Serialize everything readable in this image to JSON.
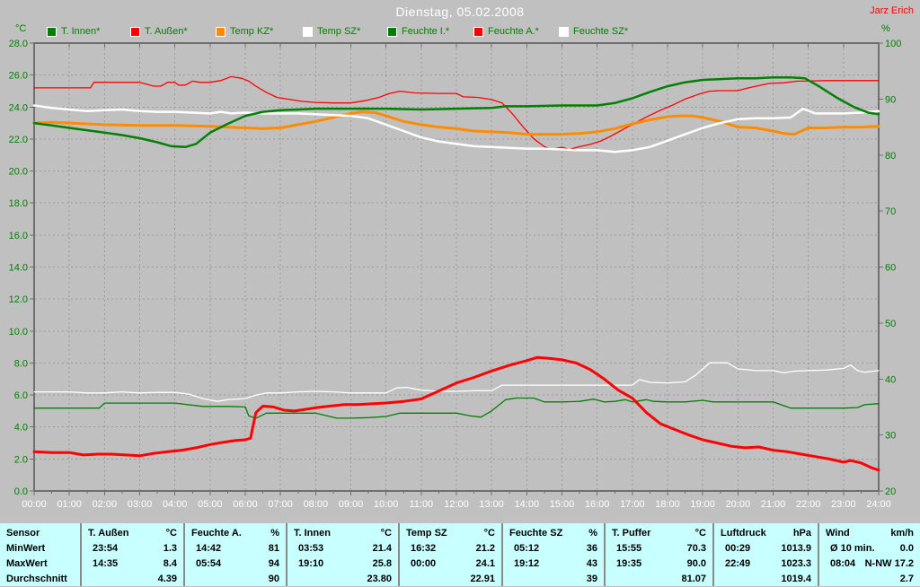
{
  "header": {
    "title": "Dienstag, 05.02.2008",
    "author": "Jarz Erich"
  },
  "axes": {
    "left_unit": "°C",
    "right_unit": "%"
  },
  "legend": [
    {
      "key": "t-innen",
      "label": "T. Innen*",
      "color": "#008000"
    },
    {
      "key": "t-aussen",
      "label": "T. Außen*",
      "color": "#ff0000"
    },
    {
      "key": "temp-kz",
      "label": "Temp KZ*",
      "color": "#ff8c00"
    },
    {
      "key": "temp-sz",
      "label": "Temp SZ*",
      "color": "#ffffff"
    },
    {
      "key": "feuchte-i",
      "label": "Feuchte I.*",
      "color": "#008000"
    },
    {
      "key": "feuchte-a",
      "label": "Feuchte A.*",
      "color": "#ff0000"
    },
    {
      "key": "feuchte-sz",
      "label": "Feuchte SZ*",
      "color": "#ffffff"
    }
  ],
  "chart_data": {
    "type": "line",
    "title": "Dienstag, 05.02.2008",
    "grid": "dashed",
    "x_axis": {
      "range": [
        0,
        24
      ],
      "ticks": [
        "00:00",
        "01:00",
        "02:00",
        "03:00",
        "04:00",
        "05:00",
        "06:00",
        "07:00",
        "08:00",
        "09:00",
        "10:00",
        "11:00",
        "12:00",
        "13:00",
        "14:00",
        "15:00",
        "16:00",
        "17:00",
        "18:00",
        "19:00",
        "20:00",
        "21:00",
        "22:00",
        "23:00",
        "24:00"
      ]
    },
    "left_axis": {
      "unit": "°C",
      "range": [
        0,
        28
      ],
      "ticks": [
        "28.0",
        "26.0",
        "24.0",
        "22.0",
        "20.0",
        "18.0",
        "16.0",
        "14.0",
        "12.0",
        "10.0",
        "8.0",
        "6.0",
        "4.0",
        "2.0",
        "0.0"
      ]
    },
    "right_axis": {
      "unit": "%",
      "range": [
        20,
        100
      ],
      "ticks": [
        "100",
        "90",
        "80",
        "70",
        "60",
        "50",
        "40",
        "30",
        "20"
      ]
    },
    "series": [
      {
        "key": "feuchte-a",
        "name": "Feuchte A.",
        "axis": "right",
        "color": "#ff0000",
        "width": 1.3,
        "x": [
          0,
          1,
          1.6,
          1.7,
          2.5,
          3,
          3.4,
          3.6,
          3.8,
          4.0,
          4.1,
          4.3,
          4.5,
          4.7,
          5.0,
          5.3,
          5.6,
          5.9,
          6.1,
          6.3,
          6.6,
          6.9,
          7.2,
          7.6,
          8.0,
          8.5,
          9.0,
          9.4,
          9.8,
          10.1,
          10.4,
          10.8,
          11.5,
          12.0,
          12.2,
          12.6,
          13.0,
          13.3,
          13.6,
          13.9,
          14.2,
          14.5,
          14.7,
          15.0,
          15.2,
          15.5,
          15.8,
          16.1,
          16.4,
          16.8,
          17.1,
          17.4,
          17.8,
          18.1,
          18.5,
          18.9,
          19.2,
          19.5,
          20.0,
          20.3,
          20.6,
          20.9,
          21.3,
          21.7,
          21.9,
          22.5,
          23.0,
          24.0
        ],
        "values": [
          92,
          92,
          92,
          93,
          93,
          93,
          92.3,
          92.3,
          93,
          93,
          92.5,
          92.5,
          93.2,
          93,
          93,
          93.3,
          94,
          93.7,
          93.2,
          92.3,
          91.2,
          90.3,
          90,
          89.6,
          89.4,
          89.3,
          89.3,
          89.7,
          90.3,
          91,
          91.4,
          91.1,
          91,
          91,
          90.4,
          90.3,
          89.9,
          89.3,
          87.3,
          85,
          82.9,
          81.5,
          81,
          81.4,
          81,
          81.5,
          81.9,
          82.5,
          83.4,
          84.8,
          85.8,
          86.8,
          88,
          88.8,
          90,
          90.9,
          91.4,
          91.5,
          91.5,
          92,
          92.4,
          92.8,
          92.9,
          93.2,
          93.2,
          93.3,
          93.3,
          93.3
        ]
      },
      {
        "key": "temp-kz",
        "name": "Temp KZ",
        "axis": "left",
        "color": "#ff8c00",
        "width": 3,
        "x": [
          0,
          0.5,
          1,
          2,
          3,
          4,
          5,
          5.5,
          6,
          6.5,
          7,
          7.5,
          8,
          8.5,
          9,
          9.3,
          9.7,
          10,
          10.5,
          11,
          11.5,
          12,
          12.5,
          13,
          13.5,
          14,
          14.5,
          15,
          15.5,
          16,
          16.5,
          17,
          17.5,
          18,
          18.3,
          18.7,
          19,
          19.5,
          20,
          20.5,
          21,
          21.3,
          21.6,
          22,
          22.5,
          23,
          23.5,
          24
        ],
        "values": [
          23.0,
          23.05,
          23.0,
          22.9,
          22.85,
          22.85,
          22.8,
          22.75,
          22.7,
          22.65,
          22.7,
          22.9,
          23.1,
          23.35,
          23.6,
          23.7,
          23.65,
          23.45,
          23.1,
          22.9,
          22.75,
          22.65,
          22.5,
          22.45,
          22.4,
          22.3,
          22.3,
          22.3,
          22.35,
          22.45,
          22.65,
          22.95,
          23.2,
          23.4,
          23.45,
          23.45,
          23.35,
          23.1,
          22.75,
          22.7,
          22.5,
          22.35,
          22.3,
          22.7,
          22.7,
          22.75,
          22.75,
          22.8
        ]
      },
      {
        "key": "temp-sz",
        "name": "Temp SZ",
        "axis": "left",
        "color": "#ffffff",
        "width": 2.5,
        "x": [
          0,
          0.5,
          1,
          1.5,
          2,
          2.5,
          3,
          3.5,
          4,
          4.5,
          5,
          5.3,
          5.6,
          6,
          6.5,
          7,
          7.5,
          8,
          8.5,
          9,
          9.5,
          10,
          10.5,
          11,
          11.5,
          12,
          12.5,
          13,
          13.5,
          14,
          14.5,
          15,
          15.5,
          16,
          16.5,
          17,
          17.5,
          18,
          18.5,
          19,
          19.5,
          20,
          20.5,
          21,
          21.5,
          21.85,
          22.2,
          22.6,
          23,
          23.5,
          24
        ],
        "values": [
          24.1,
          23.95,
          23.85,
          23.75,
          23.8,
          23.85,
          23.75,
          23.7,
          23.7,
          23.65,
          23.6,
          23.7,
          23.6,
          23.65,
          23.6,
          23.6,
          23.6,
          23.55,
          23.5,
          23.45,
          23.3,
          22.9,
          22.5,
          22.1,
          21.85,
          21.7,
          21.55,
          21.5,
          21.45,
          21.4,
          21.4,
          21.35,
          21.3,
          21.3,
          21.2,
          21.3,
          21.5,
          21.9,
          22.3,
          22.7,
          23.0,
          23.25,
          23.3,
          23.3,
          23.35,
          23.9,
          23.6,
          23.6,
          23.6,
          23.65,
          23.75
        ]
      },
      {
        "key": "feuchte-i",
        "name": "Feuchte I.",
        "axis": "right",
        "color": "#008000",
        "width": 1.3,
        "x": [
          0,
          1,
          1.85,
          2,
          3,
          4,
          4.8,
          5.5,
          6,
          6.1,
          6.3,
          6.6,
          7,
          8,
          8.6,
          9,
          9.5,
          10,
          10.4,
          11,
          12,
          12.4,
          12.7,
          13,
          13.4,
          13.7,
          14.2,
          14.5,
          15,
          15.5,
          15.9,
          16.2,
          16.5,
          16.8,
          17,
          17.4,
          17.6,
          18,
          18.5,
          19,
          19.3,
          20,
          21,
          21.5,
          22,
          23,
          23.4,
          23.6,
          24
        ],
        "values": [
          34.8,
          34.8,
          34.8,
          35.7,
          35.7,
          35.7,
          35.1,
          35.1,
          35.0,
          33.4,
          33.0,
          33.9,
          33.9,
          33.9,
          33.0,
          33.0,
          33.1,
          33.3,
          33.9,
          33.9,
          33.9,
          33.4,
          33.2,
          34.3,
          36.3,
          36.6,
          36.6,
          35.9,
          35.9,
          36.0,
          36.4,
          35.9,
          36.0,
          36.3,
          35.9,
          36.3,
          36.0,
          35.9,
          35.9,
          36.2,
          35.9,
          35.9,
          35.9,
          34.8,
          34.8,
          34.8,
          34.9,
          35.4,
          35.6
        ]
      },
      {
        "key": "feuchte-sz",
        "name": "Feuchte SZ",
        "axis": "right",
        "color": "#ffffff",
        "width": 1.3,
        "x": [
          0,
          0.5,
          1,
          1.5,
          2,
          2.5,
          3,
          3.5,
          4,
          4.4,
          4.8,
          5.2,
          5.5,
          6,
          6.3,
          6.6,
          7,
          7.5,
          8,
          8.5,
          9,
          9.5,
          10,
          10.3,
          10.6,
          11,
          11.5,
          12,
          12.5,
          13,
          13.3,
          13.6,
          14,
          15,
          16,
          17,
          17.2,
          17.5,
          18,
          18.5,
          18.8,
          19.2,
          19.7,
          20,
          20.5,
          21,
          21.3,
          21.6,
          22,
          22.5,
          23,
          23.2,
          23.4,
          23.6,
          24
        ],
        "values": [
          37.7,
          37.7,
          37.7,
          37.5,
          37.5,
          37.7,
          37.5,
          37.6,
          37.6,
          37.3,
          36.5,
          36.0,
          36.3,
          36.5,
          37.1,
          37.5,
          37.5,
          37.7,
          37.8,
          37.7,
          37.5,
          37.5,
          37.5,
          38.4,
          38.5,
          38.0,
          37.8,
          37.8,
          37.9,
          37.9,
          38.9,
          38.9,
          38.9,
          38.9,
          38.9,
          38.9,
          39.9,
          39.4,
          39.3,
          39.5,
          40.7,
          42.9,
          42.9,
          41.8,
          41.5,
          41.5,
          41.1,
          41.4,
          41.5,
          41.6,
          41.9,
          42.5,
          41.5,
          41.2,
          41.5
        ]
      },
      {
        "key": "t-aussen",
        "name": "T. Außen",
        "axis": "left",
        "color": "#ff0000",
        "width": 3,
        "x": [
          0,
          0.5,
          1,
          1.4,
          1.8,
          2.2,
          2.6,
          3.0,
          3.4,
          3.8,
          4.2,
          4.6,
          5.0,
          5.4,
          5.7,
          6.0,
          6.15,
          6.3,
          6.5,
          6.8,
          7.1,
          7.4,
          7.7,
          8.0,
          8.4,
          8.8,
          9.2,
          9.6,
          10.0,
          10.5,
          11.0,
          11.5,
          12.0,
          12.5,
          13.0,
          13.5,
          14.0,
          14.3,
          14.6,
          15.0,
          15.4,
          15.8,
          16.2,
          16.6,
          17.0,
          17.4,
          17.8,
          18.2,
          18.6,
          19.0,
          19.4,
          19.8,
          20.2,
          20.6,
          21.0,
          21.4,
          21.8,
          22.2,
          22.6,
          23.0,
          23.2,
          23.5,
          23.8,
          24.0
        ],
        "values": [
          2.45,
          2.4,
          2.4,
          2.25,
          2.3,
          2.3,
          2.25,
          2.2,
          2.35,
          2.45,
          2.55,
          2.7,
          2.9,
          3.05,
          3.15,
          3.2,
          3.3,
          4.9,
          5.3,
          5.25,
          5.05,
          5.0,
          5.1,
          5.2,
          5.3,
          5.4,
          5.4,
          5.45,
          5.5,
          5.6,
          5.75,
          6.25,
          6.75,
          7.1,
          7.5,
          7.85,
          8.15,
          8.35,
          8.3,
          8.2,
          8.0,
          7.6,
          7.0,
          6.3,
          5.8,
          4.9,
          4.2,
          3.85,
          3.5,
          3.2,
          3.0,
          2.8,
          2.7,
          2.75,
          2.55,
          2.45,
          2.3,
          2.15,
          2.0,
          1.8,
          1.9,
          1.75,
          1.45,
          1.3
        ]
      },
      {
        "key": "t-innen",
        "name": "T. Innen",
        "axis": "left",
        "color": "#008000",
        "width": 2.5,
        "x": [
          0,
          0.5,
          1,
          1.5,
          2,
          2.5,
          3,
          3.5,
          3.9,
          4.3,
          4.6,
          5,
          5.5,
          6,
          6.5,
          7,
          7.5,
          8,
          9,
          10,
          11,
          12,
          13,
          13.4,
          14,
          15,
          16,
          16.5,
          17,
          17.5,
          18,
          18.5,
          19,
          19.5,
          20,
          20.5,
          21,
          21.5,
          21.9,
          22.3,
          22.8,
          23.3,
          23.7,
          24
        ],
        "values": [
          23.0,
          22.85,
          22.7,
          22.55,
          22.4,
          22.25,
          22.05,
          21.8,
          21.55,
          21.5,
          21.7,
          22.4,
          22.95,
          23.45,
          23.7,
          23.8,
          23.85,
          23.9,
          23.9,
          23.9,
          23.85,
          23.9,
          23.95,
          24.05,
          24.05,
          24.1,
          24.1,
          24.25,
          24.55,
          24.95,
          25.3,
          25.55,
          25.7,
          25.75,
          25.8,
          25.8,
          25.85,
          25.85,
          25.8,
          25.3,
          24.6,
          24.0,
          23.65,
          23.55
        ]
      }
    ]
  },
  "table": {
    "row_labels": [
      "Sensor",
      "MinWert",
      "MaxWert",
      "Durchschnitt"
    ],
    "groups": [
      {
        "key": "t-aussen",
        "name": "T. Außen",
        "unit": "°C",
        "min_time": "23:54",
        "min_value": "1.3",
        "max_time": "14:35",
        "max_value": "8.4",
        "avg": "4.39"
      },
      {
        "key": "feuchte-a",
        "name": "Feuchte A.",
        "unit": "%",
        "min_time": "14:42",
        "min_value": "81",
        "max_time": "05:54",
        "max_value": "94",
        "avg": "90"
      },
      {
        "key": "t-innen",
        "name": "T. Innen",
        "unit": "°C",
        "min_time": "03:53",
        "min_value": "21.4",
        "max_time": "19:10",
        "max_value": "25.8",
        "avg": "23.80"
      },
      {
        "key": "temp-sz",
        "name": "Temp SZ",
        "unit": "°C",
        "min_time": "16:32",
        "min_value": "21.2",
        "max_time": "00:00",
        "max_value": "24.1",
        "avg": "22.91"
      },
      {
        "key": "feuchte-sz",
        "name": "Feuchte SZ",
        "unit": "%",
        "min_time": "05:12",
        "min_value": "36",
        "max_time": "19:12",
        "max_value": "43",
        "avg": "39"
      },
      {
        "key": "t-puffer",
        "name": "T. Puffer",
        "unit": "°C",
        "min_time": "15:55",
        "min_value": "70.3",
        "max_time": "19:35",
        "max_value": "90.0",
        "avg": "81.07"
      },
      {
        "key": "luftdruck",
        "name": "Luftdruck",
        "unit": "hPa",
        "min_time": "00:29",
        "min_value": "1013.9",
        "max_time": "22:49",
        "max_value": "1023.3",
        "avg": "1019.4"
      },
      {
        "key": "wind",
        "name": "Wind",
        "unit": "km/h",
        "min_time": "Ø 10 min.",
        "min_value": "0.0",
        "max_time": "08:04",
        "max_value": "N-NW 17.2",
        "avg": "2.7"
      }
    ]
  }
}
